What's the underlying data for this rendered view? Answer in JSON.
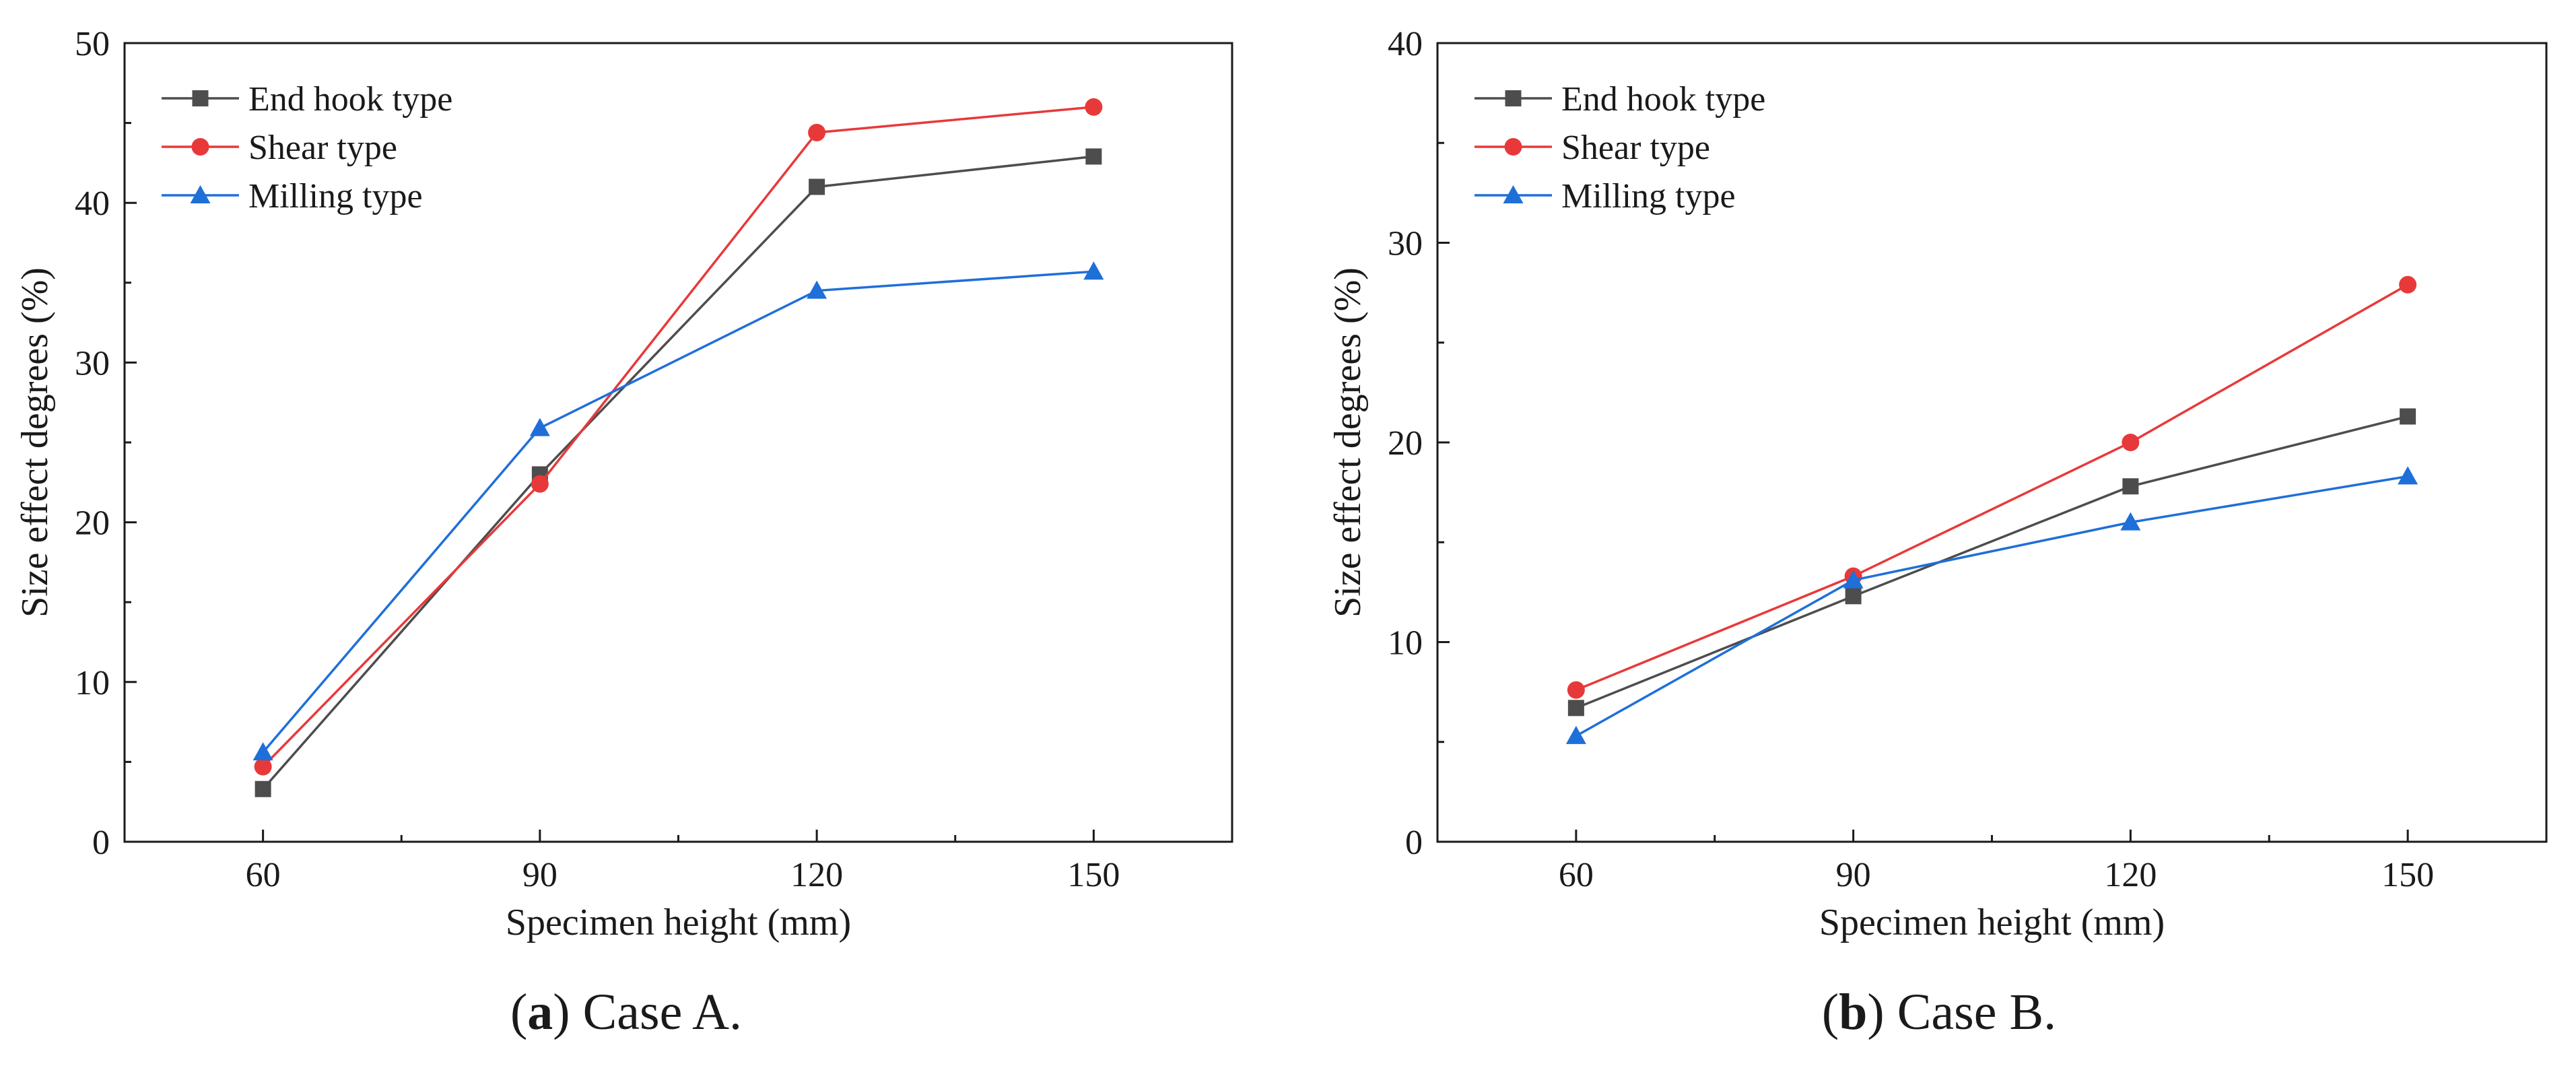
{
  "chart_data": [
    {
      "type": "line",
      "xlabel": "Specimen height (mm)",
      "ylabel": "Size effect degrees (%)",
      "x": [
        60,
        90,
        120,
        150
      ],
      "xlim": [
        45,
        165
      ],
      "ylim": [
        0,
        50
      ],
      "xticks": [
        60,
        90,
        120,
        150
      ],
      "yticks": [
        0,
        10,
        20,
        30,
        40,
        50
      ],
      "legend_position": "top-left",
      "grid": false,
      "caption": {
        "letter": "a",
        "text": ") Case A."
      },
      "series": [
        {
          "name": "End hook type",
          "color": "#4d4d4d",
          "marker": "square",
          "values": [
            3.3,
            23.0,
            41.0,
            42.9
          ]
        },
        {
          "name": "Shear type",
          "color": "#e8393a",
          "marker": "circle",
          "values": [
            4.7,
            22.4,
            44.4,
            46.0
          ]
        },
        {
          "name": "Milling type",
          "color": "#1f6fd9",
          "marker": "triangle",
          "values": [
            5.6,
            25.9,
            34.5,
            35.7
          ]
        }
      ]
    },
    {
      "type": "line",
      "xlabel": "Specimen height (mm)",
      "ylabel": "Size effect degrees (%)",
      "x": [
        60,
        90,
        120,
        150
      ],
      "xlim": [
        45,
        165
      ],
      "ylim": [
        0,
        40
      ],
      "xticks": [
        60,
        90,
        120,
        150
      ],
      "yticks": [
        0,
        10,
        20,
        30,
        40
      ],
      "legend_position": "top-left",
      "grid": false,
      "caption": {
        "letter": "b",
        "text": ") Case B."
      },
      "series": [
        {
          "name": "End hook type",
          "color": "#4d4d4d",
          "marker": "square",
          "values": [
            6.7,
            12.3,
            17.8,
            21.3
          ]
        },
        {
          "name": "Shear type",
          "color": "#e8393a",
          "marker": "circle",
          "values": [
            7.6,
            13.3,
            20.0,
            27.9
          ]
        },
        {
          "name": "Milling type",
          "color": "#1f6fd9",
          "marker": "triangle",
          "values": [
            5.3,
            13.1,
            16.0,
            18.3
          ]
        }
      ]
    }
  ]
}
